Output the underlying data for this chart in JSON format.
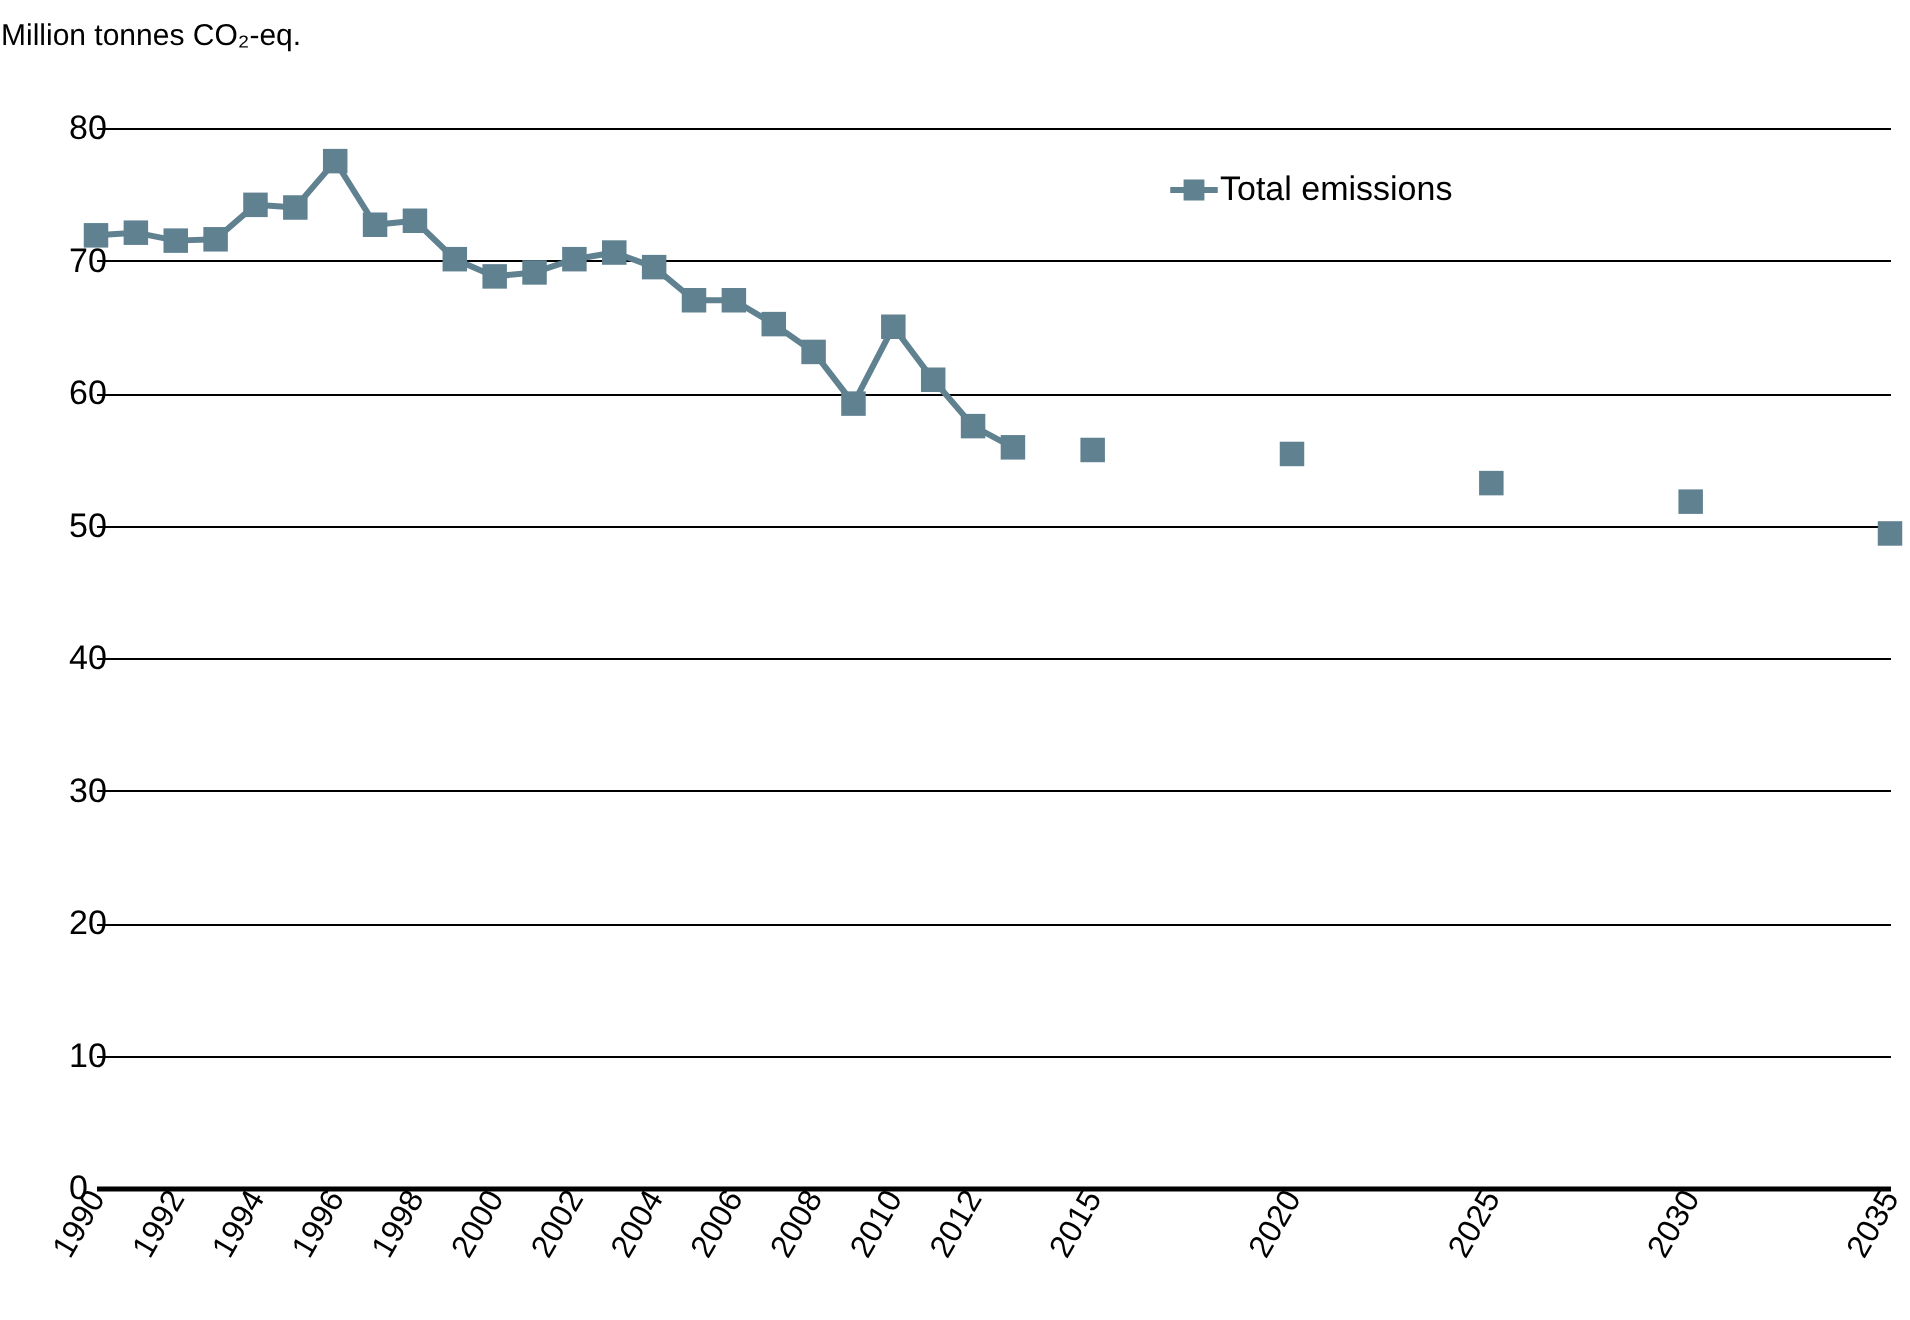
{
  "chart_data": {
    "type": "line",
    "ylabel": "Million tonnes CO₂-eq.",
    "xlim": [
      1990,
      2035
    ],
    "xticks": [
      1990,
      1992,
      1994,
      1996,
      1998,
      2000,
      2002,
      2004,
      2006,
      2008,
      2010,
      2012,
      2015,
      2020,
      2025,
      2030,
      2035
    ],
    "ylim": [
      0,
      80
    ],
    "yticks": [
      0,
      10,
      20,
      30,
      40,
      50,
      60,
      70,
      80
    ],
    "grid": "y",
    "legend": "top right",
    "marker": "square",
    "series": [
      {
        "name": "Total emissions",
        "type": "line",
        "color": "#5f8190",
        "x": [
          1990,
          1991,
          1992,
          1993,
          1994,
          1995,
          1996,
          1997,
          1998,
          1999,
          2000,
          2001,
          2002,
          2003,
          2004,
          2005,
          2006,
          2007,
          2008,
          2009,
          2010,
          2011,
          2012,
          2013
        ],
        "values": [
          71.9,
          72.1,
          71.5,
          71.6,
          74.2,
          74.0,
          77.5,
          72.7,
          73.0,
          70.1,
          68.8,
          69.1,
          70.1,
          70.6,
          69.5,
          67.0,
          67.0,
          65.2,
          63.1,
          59.2,
          65.0,
          61.0,
          57.5,
          55.9
        ]
      },
      {
        "type": "scatter",
        "color": "#5f8190",
        "x": [
          2015,
          2020,
          2025,
          2030,
          2035
        ],
        "values": [
          55.7,
          55.4,
          53.2,
          51.8,
          49.4
        ]
      }
    ]
  }
}
